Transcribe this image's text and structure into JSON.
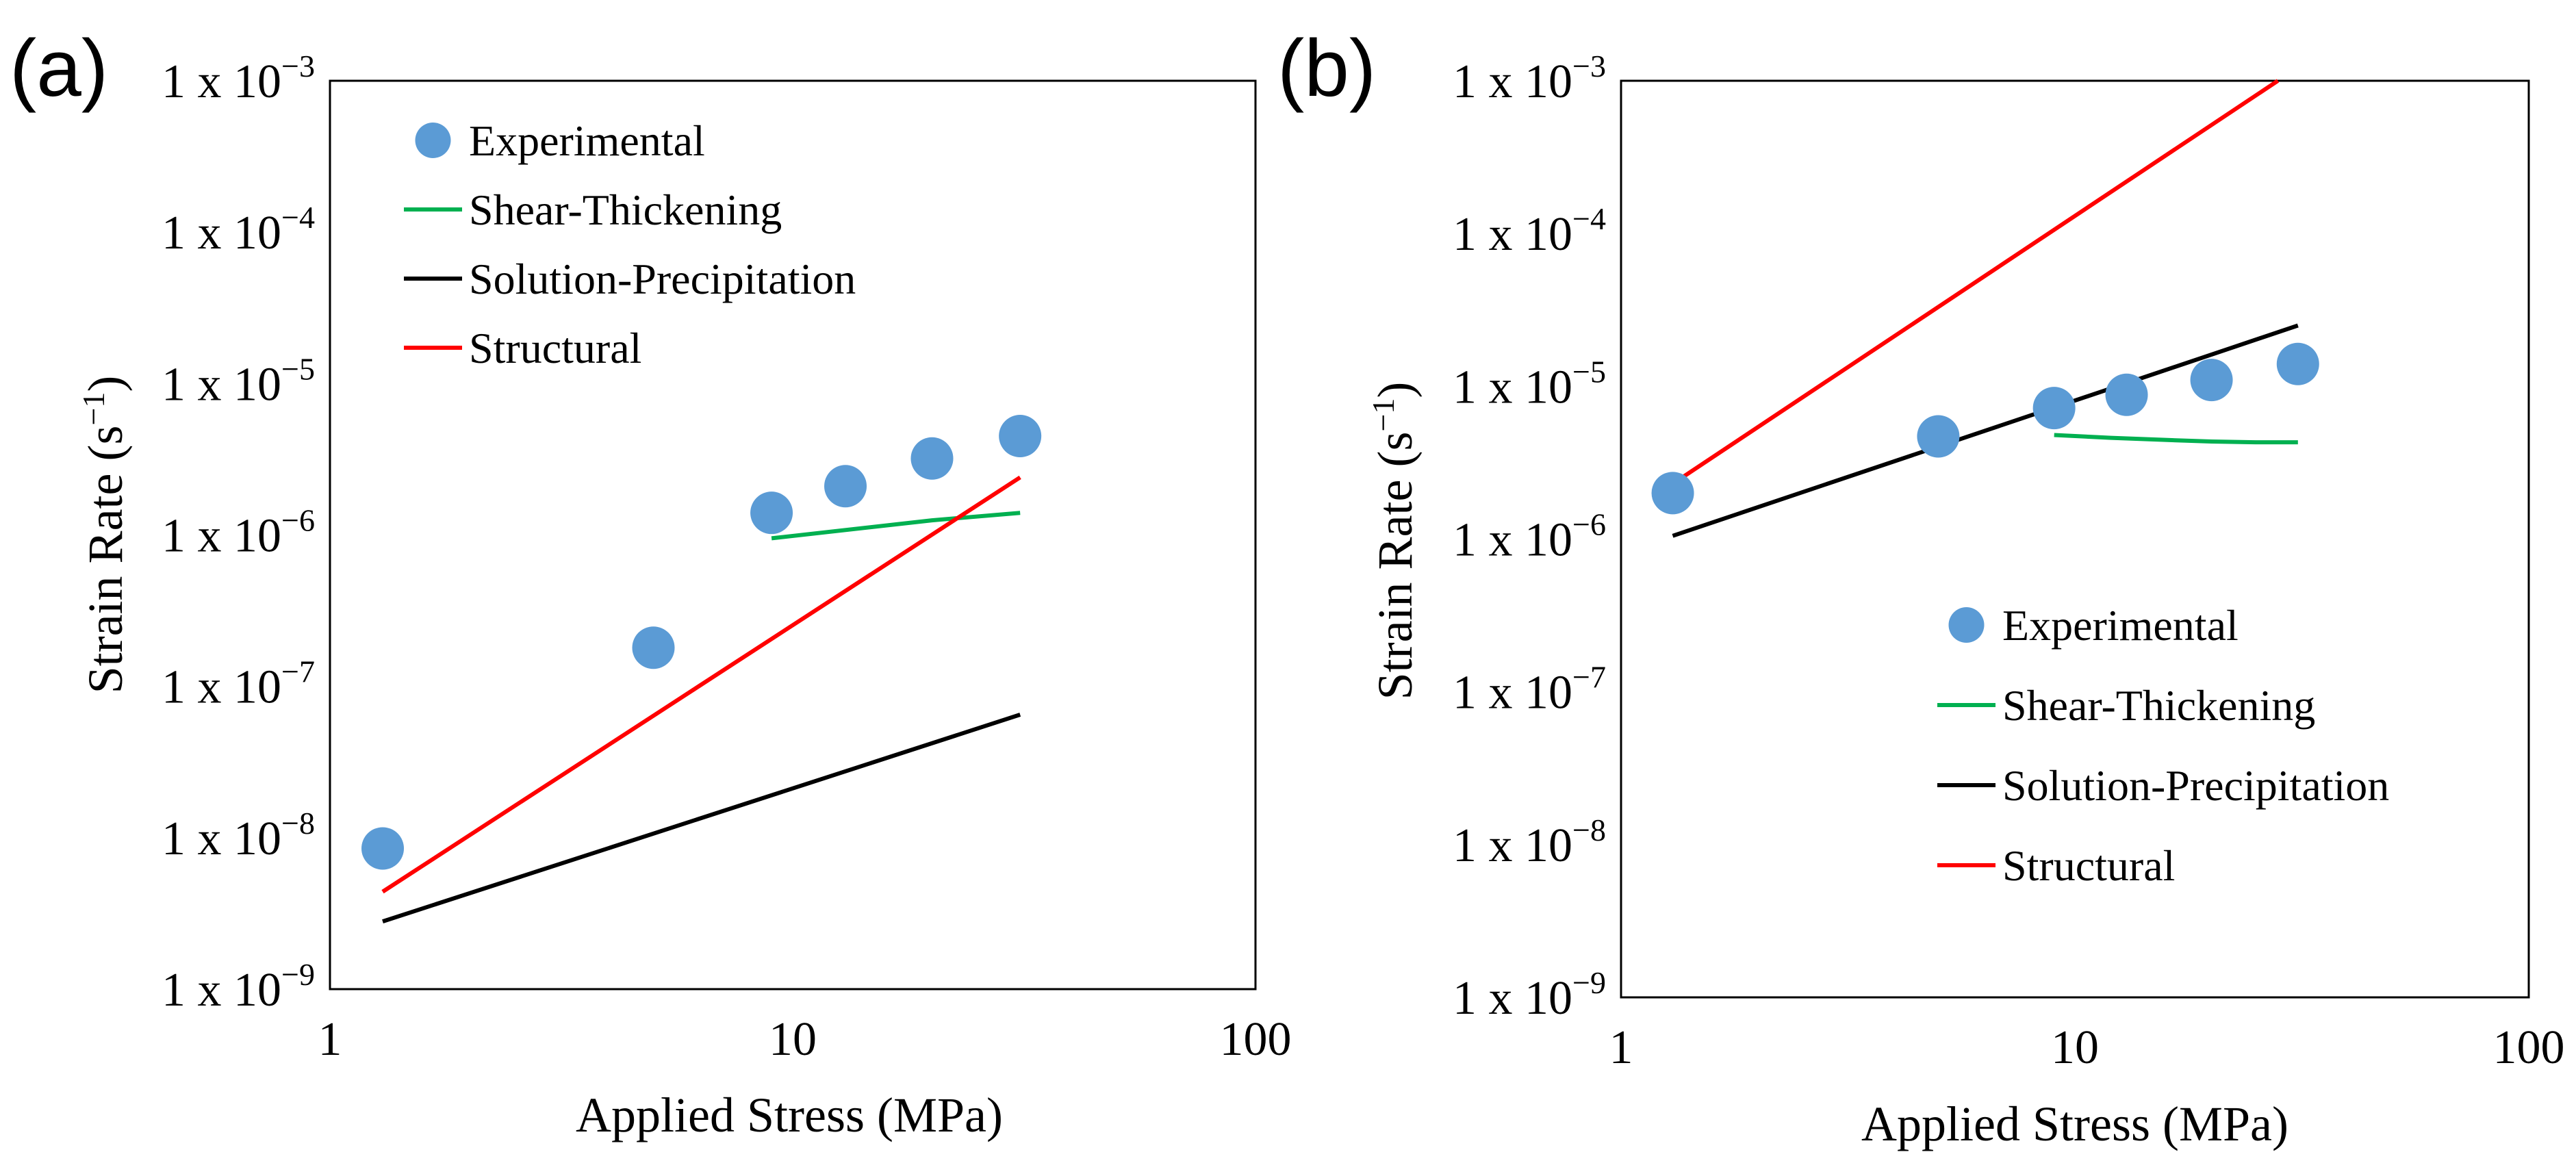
{
  "chart_data": [
    {
      "panel_label": "(a)",
      "type": "scatter",
      "xlabel": "Applied Stress (MPa)",
      "ylabel": "Strain Rate (s",
      "ylabel_sup": "−1",
      "ylabel_close": ")",
      "xscale": "log",
      "yscale": "log",
      "xlim": [
        1,
        100
      ],
      "ylim": [
        1e-09,
        0.001
      ],
      "x_ticks": [
        {
          "value": 1,
          "label": "1"
        },
        {
          "value": 10,
          "label": "10"
        },
        {
          "value": 100,
          "label": "100"
        }
      ],
      "y_ticks": [
        {
          "value": 1e-09,
          "base": "1 x 10",
          "exp": "−9"
        },
        {
          "value": 1e-08,
          "base": "1 x 10",
          "exp": "−8"
        },
        {
          "value": 1e-07,
          "base": "1 x 10",
          "exp": "−7"
        },
        {
          "value": 1e-06,
          "base": "1 x 10",
          "exp": "−6"
        },
        {
          "value": 1e-05,
          "base": "1 x 10",
          "exp": "−5"
        },
        {
          "value": 0.0001,
          "base": "1 x 10",
          "exp": "−4"
        },
        {
          "value": 0.001,
          "base": "1 x 10",
          "exp": "−3"
        }
      ],
      "legend_position": "top-left",
      "series": [
        {
          "name": "Experimental",
          "kind": "marker",
          "color": "#5B9BD5",
          "x": [
            1.3,
            5,
            9,
            13,
            20,
            31
          ],
          "y": [
            8.5e-09,
            1.8e-07,
            1.4e-06,
            2.1e-06,
            3.2e-06,
            4.5e-06
          ]
        },
        {
          "name": "Shear-Thickening",
          "kind": "line",
          "color": "#00B050",
          "x": [
            9,
            20,
            31
          ],
          "y": [
            9.5e-07,
            1.25e-06,
            1.4e-06
          ]
        },
        {
          "name": "Solution-Precipitation",
          "kind": "line",
          "color": "#000000",
          "x": [
            1.3,
            31
          ],
          "y": [
            2.8e-09,
            6.5e-08
          ]
        },
        {
          "name": "Structural",
          "kind": "line",
          "color": "#FF0000",
          "x": [
            1.3,
            31
          ],
          "y": [
            4.4e-09,
            2.4e-06
          ]
        }
      ]
    },
    {
      "panel_label": "(b)",
      "type": "scatter",
      "xlabel": "Applied Stress (MPa)",
      "ylabel": "Strain Rate (s",
      "ylabel_sup": "−1",
      "ylabel_close": ")",
      "xscale": "log",
      "yscale": "log",
      "xlim": [
        1,
        100
      ],
      "ylim": [
        1e-09,
        0.001
      ],
      "x_ticks": [
        {
          "value": 1,
          "label": "1"
        },
        {
          "value": 10,
          "label": "10"
        },
        {
          "value": 100,
          "label": "100"
        }
      ],
      "y_ticks": [
        {
          "value": 1e-09,
          "base": "1 x 10",
          "exp": "−9"
        },
        {
          "value": 1e-08,
          "base": "1 x 10",
          "exp": "−8"
        },
        {
          "value": 1e-07,
          "base": "1 x 10",
          "exp": "−7"
        },
        {
          "value": 1e-06,
          "base": "1 x 10",
          "exp": "−6"
        },
        {
          "value": 1e-05,
          "base": "1 x 10",
          "exp": "−5"
        },
        {
          "value": 0.0001,
          "base": "1 x 10",
          "exp": "−4"
        },
        {
          "value": 0.001,
          "base": "1 x 10",
          "exp": "−3"
        }
      ],
      "legend_position": "bottom-right",
      "series": [
        {
          "name": "Experimental",
          "kind": "marker",
          "color": "#5B9BD5",
          "x": [
            1.3,
            5,
            9,
            13,
            20,
            31
          ],
          "y": [
            2e-06,
            4.7e-06,
            7.2e-06,
            8.8e-06,
            1.1e-05,
            1.4e-05
          ]
        },
        {
          "name": "Shear-Thickening",
          "kind": "line",
          "color": "#00B050",
          "x": [
            9,
            12,
            16,
            20,
            25,
            31
          ],
          "y": [
            4.8e-06,
            4.6e-06,
            4.45e-06,
            4.35e-06,
            4.3e-06,
            4.3e-06
          ]
        },
        {
          "name": "Solution-Precipitation",
          "kind": "line",
          "color": "#000000",
          "x": [
            1.3,
            31
          ],
          "y": [
            1.05e-06,
            2.5e-05
          ]
        },
        {
          "name": "Structural",
          "kind": "line",
          "color": "#FF0000",
          "x": [
            1.3,
            28
          ],
          "y": [
            2.3e-06,
            0.001
          ]
        }
      ]
    }
  ]
}
